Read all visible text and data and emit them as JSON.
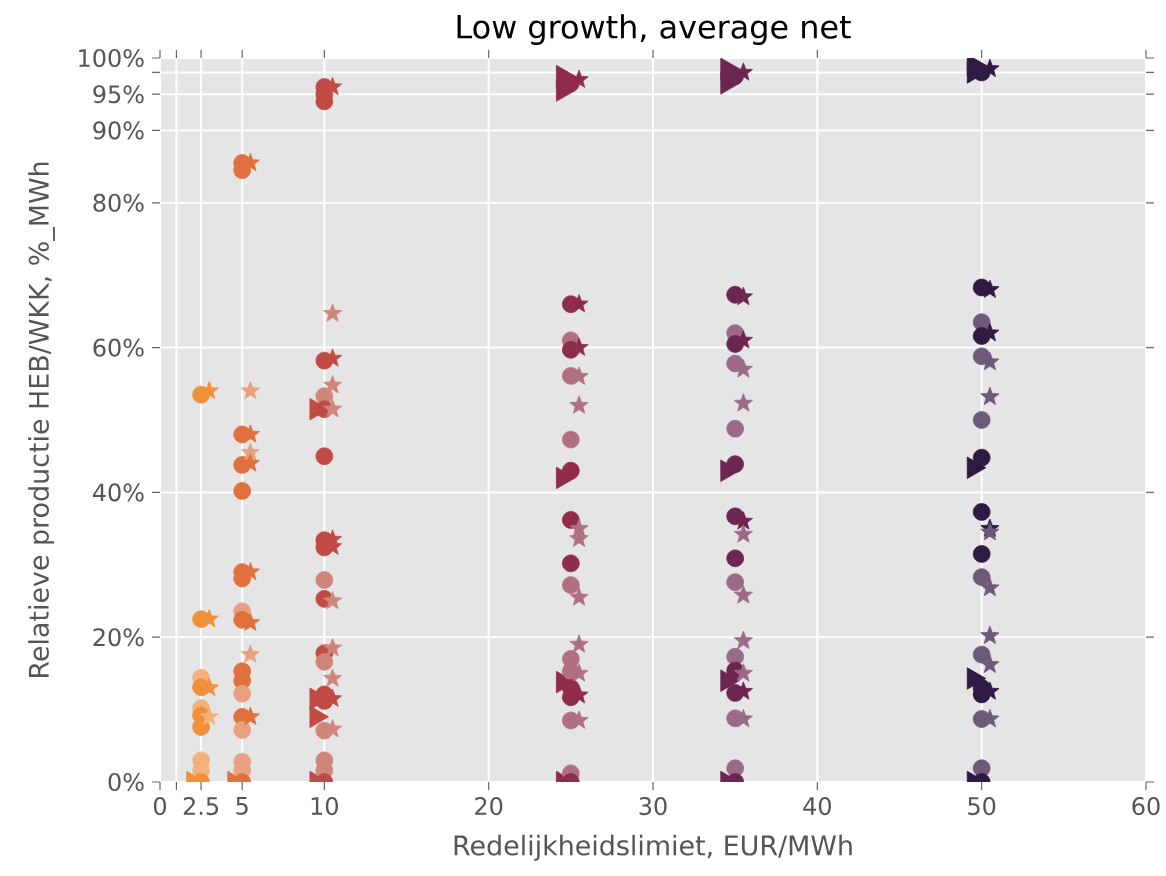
{
  "chart_data": {
    "type": "scatter",
    "title": "Low growth, average net",
    "xlabel": "Redelijkheidslimiet, EUR/MWh",
    "ylabel": "Relatieve productie HEB/WKK, %_MWh",
    "xlim": [
      0,
      60
    ],
    "ylim": [
      0,
      100
    ],
    "xticks": [
      0,
      {
        "value": 1,
        "label": null
      },
      2.5,
      5,
      10,
      20,
      30,
      40,
      50,
      60
    ],
    "yticks": [
      {
        "value": 0,
        "label": "0%"
      },
      {
        "value": 20,
        "label": "20%"
      },
      {
        "value": 40,
        "label": "40%"
      },
      {
        "value": 60,
        "label": "60%"
      },
      {
        "value": 80,
        "label": "80%"
      },
      {
        "value": 90,
        "label": "90%"
      },
      {
        "value": 95,
        "label": "95%"
      },
      {
        "value": 98,
        "label": null
      },
      {
        "value": 100,
        "label": "100%"
      }
    ],
    "grid": true,
    "series": [
      {
        "marker": "triangle",
        "x": [
          2,
          4.5,
          9.5,
          9.5,
          9.5,
          9.5,
          24.5,
          24.5,
          24.5,
          24.5,
          24.5,
          34.5,
          34.5,
          34.5,
          34.5,
          34.5,
          49.5,
          49.5,
          49.5,
          49.5,
          49.5
        ],
        "values": [
          0,
          0,
          51.5,
          11.5,
          9,
          0,
          97.5,
          95.5,
          42,
          13.8,
          0,
          98.5,
          96.5,
          43,
          14,
          0,
          99,
          98,
          43.4,
          14.3,
          0
        ],
        "colors": [
          "#f0913a",
          "#e0703e",
          "#bf4b44",
          "#bf4b44",
          "#bf4b44",
          "#bf4b44",
          "#8e2c4a",
          "#8e2c4a",
          "#8e2c4a",
          "#8e2c4a",
          "#8e2c4a",
          "#6d2552",
          "#6d2552",
          "#6d2552",
          "#6d2552",
          "#6d2552",
          "#2e1a42",
          "#2e1a42",
          "#2e1a42",
          "#2e1a42",
          "#2e1a42"
        ]
      },
      {
        "marker": "circle",
        "x": [
          2.5,
          2.5,
          2.5,
          2.5,
          2.5,
          2.5,
          2.5,
          2.5,
          2.5,
          2.5,
          5,
          5,
          5,
          5,
          5,
          5,
          5,
          5,
          5,
          5,
          5,
          5,
          5,
          5,
          5,
          5,
          5,
          10,
          10,
          10,
          10,
          10,
          10,
          10,
          10,
          10,
          10,
          10,
          10,
          10,
          10,
          10,
          10,
          10,
          10,
          10,
          25,
          25,
          25,
          25,
          25,
          25,
          25,
          25,
          25,
          25,
          25,
          25,
          25,
          25,
          25,
          25,
          25,
          35,
          35,
          35,
          35,
          35,
          35,
          35,
          35,
          35,
          35,
          35,
          35,
          35,
          35,
          35,
          35,
          50,
          50,
          50,
          50,
          50,
          50,
          50,
          50,
          50,
          50,
          50,
          50,
          50,
          50,
          50,
          50
        ],
        "values": [
          53.5,
          22.5,
          14.4,
          13.1,
          10.2,
          9.2,
          7.6,
          3,
          1.6,
          0,
          85.5,
          84.5,
          48,
          43.8,
          40.2,
          29,
          28.1,
          23.6,
          22.4,
          15.3,
          14,
          12.2,
          9,
          7.2,
          2.8,
          1.6,
          0,
          96,
          95,
          94,
          58.2,
          53.3,
          51.5,
          45,
          33.4,
          32.4,
          27.9,
          25.3,
          17.8,
          16.6,
          12.1,
          11.2,
          7.1,
          3,
          1.6,
          0,
          96.5,
          66,
          61,
          59.7,
          56.1,
          47.3,
          43,
          36.2,
          30.2,
          27.2,
          17,
          15.3,
          13,
          11.7,
          8.5,
          1.2,
          0,
          97.5,
          67.3,
          62,
          60.5,
          57.8,
          48.8,
          43.9,
          36.7,
          30.9,
          27.6,
          17.3,
          15.4,
          12.3,
          8.8,
          1.9,
          0,
          98,
          68.3,
          63.5,
          61.6,
          58.8,
          50,
          44.8,
          37.3,
          31.5,
          28.3,
          17.6,
          13,
          12.1,
          8.7,
          1.9,
          0
        ],
        "colors": [
          "#f0913a",
          "#f0913a",
          "#f3b27d",
          "#f0913a",
          "#f3b27d",
          "#f0913a",
          "#f0913a",
          "#f3b27d",
          "#f3b27d",
          "#f0913a",
          "#e0703e",
          "#e0703e",
          "#e0703e",
          "#e0703e",
          "#e0703e",
          "#e0703e",
          "#e0703e",
          "#eaa080",
          "#e0703e",
          "#e0703e",
          "#e0703e",
          "#eaa080",
          "#e0703e",
          "#eaa080",
          "#eaa080",
          "#eaa080",
          "#e0703e",
          "#bf4b44",
          "#bf4b44",
          "#bf4b44",
          "#bf4b44",
          "#cf8579",
          "#bf4b44",
          "#bf4b44",
          "#bf4b44",
          "#bf4b44",
          "#cf8579",
          "#bf4b44",
          "#bf4b44",
          "#cf8579",
          "#bf4b44",
          "#bf4b44",
          "#cf8579",
          "#cf8579",
          "#cf8579",
          "#bf4b44",
          "#8e2c4a",
          "#8e2c4a",
          "#b07080",
          "#8e2c4a",
          "#b07080",
          "#b07080",
          "#8e2c4a",
          "#8e2c4a",
          "#8e2c4a",
          "#b07080",
          "#b07080",
          "#b07080",
          "#8e2c4a",
          "#8e2c4a",
          "#b07080",
          "#b07080",
          "#8e2c4a",
          "#6d2552",
          "#6d2552",
          "#9a6a88",
          "#6d2552",
          "#9a6a88",
          "#9a6a88",
          "#6d2552",
          "#6d2552",
          "#6d2552",
          "#9a6a88",
          "#9a6a88",
          "#6d2552",
          "#6d2552",
          "#9a6a88",
          "#9a6a88",
          "#6d2552",
          "#2e1a42",
          "#2e1a42",
          "#6d5a78",
          "#2e1a42",
          "#6d5a78",
          "#6d5a78",
          "#2e1a42",
          "#2e1a42",
          "#2e1a42",
          "#6d5a78",
          "#6d5a78",
          "#2e1a42",
          "#2e1a42",
          "#6d5a78",
          "#6d5a78",
          "#2e1a42"
        ]
      },
      {
        "marker": "star",
        "x": [
          3,
          3,
          3,
          3,
          5.5,
          5.5,
          5.5,
          5.5,
          5.5,
          5.5,
          5.5,
          5.5,
          5.5,
          10.5,
          10.5,
          10.5,
          10.5,
          10.5,
          10.5,
          10.5,
          10.5,
          10.5,
          10.5,
          10.5,
          10.5,
          25.5,
          25.5,
          25.5,
          25.5,
          25.5,
          25.5,
          25.5,
          25.5,
          25.5,
          25.5,
          25.5,
          25.5,
          35.5,
          35.5,
          35.5,
          35.5,
          35.5,
          35.5,
          35.5,
          35.5,
          35.5,
          35.5,
          35.5,
          35.5,
          50.5,
          50.5,
          50.5,
          50.5,
          50.5,
          50.5,
          50.5,
          50.5,
          50.5,
          50.5,
          50.5,
          50.5
        ],
        "values": [
          54,
          22.5,
          13,
          9,
          85.5,
          54,
          48,
          45.5,
          44,
          29,
          22,
          17.6,
          9,
          96,
          64.7,
          58.5,
          54.8,
          51.5,
          33.5,
          32.5,
          25,
          18.5,
          14.3,
          11.5,
          7.3,
          97,
          66,
          60,
          56,
          52,
          35,
          33.6,
          25.5,
          19,
          15,
          12,
          8.5,
          98,
          67,
          61,
          57,
          52.3,
          36,
          34.2,
          25.8,
          19.5,
          15,
          12.5,
          8.7,
          98.5,
          68,
          62,
          58,
          53.2,
          35,
          34.5,
          26.8,
          20.2,
          16.2,
          12.5,
          8.7
        ],
        "colors": [
          "#f0913a",
          "#f0913a",
          "#f0913a",
          "#f3b27d",
          "#e0703e",
          "#eaa080",
          "#e0703e",
          "#eaa080",
          "#e0703e",
          "#e0703e",
          "#e0703e",
          "#eaa080",
          "#e0703e",
          "#bf4b44",
          "#cf8579",
          "#bf4b44",
          "#cf8579",
          "#cf8579",
          "#bf4b44",
          "#bf4b44",
          "#cf8579",
          "#cf8579",
          "#cf8579",
          "#bf4b44",
          "#cf8579",
          "#8e2c4a",
          "#8e2c4a",
          "#8e2c4a",
          "#b07080",
          "#b07080",
          "#b07080",
          "#b07080",
          "#b07080",
          "#b07080",
          "#b07080",
          "#8e2c4a",
          "#b07080",
          "#6d2552",
          "#6d2552",
          "#6d2552",
          "#9a6a88",
          "#9a6a88",
          "#6d2552",
          "#9a6a88",
          "#9a6a88",
          "#9a6a88",
          "#9a6a88",
          "#6d2552",
          "#9a6a88",
          "#2e1a42",
          "#2e1a42",
          "#2e1a42",
          "#6d5a78",
          "#6d5a78",
          "#2e1a42",
          "#6d5a78",
          "#6d5a78",
          "#6d5a78",
          "#6d5a78",
          "#2e1a42",
          "#6d5a78"
        ]
      }
    ]
  }
}
